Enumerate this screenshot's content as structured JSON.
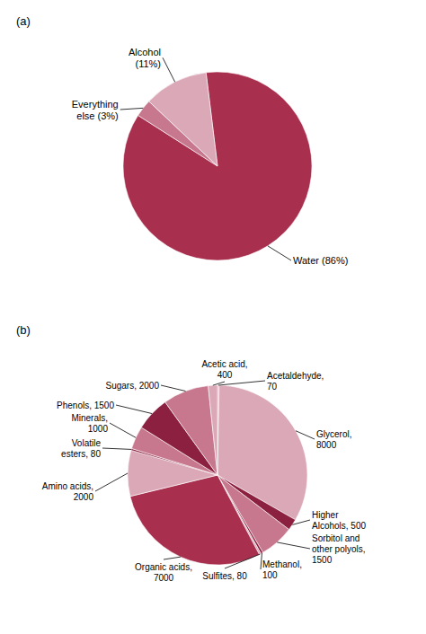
{
  "chart_data": [
    {
      "type": "pie",
      "title": "(a)",
      "categories": [
        "Water (86%)",
        "Everything\nelse (3%)",
        "Alcohol\n(11%)"
      ],
      "values": [
        86,
        3,
        11
      ],
      "colors": [
        "#a8304e",
        "#c8788e",
        "#dba8b8"
      ]
    },
    {
      "type": "pie",
      "title": "(b)",
      "categories": [
        "Acetaldehyde,\n70",
        "Glycerol,\n8000",
        "Higher\nAlcohols, 500",
        "Sorbitol and\nother polyols,\n1500",
        "Methanol,\n100",
        "Sulfites, 80",
        "Organic acids,\n7000",
        "Amino acids,\n2000",
        "Volatile\nesters, 80",
        "Minerals,\n1000",
        "Phenols, 1500",
        "Sugars, 2000",
        "Acetic acid,\n400"
      ],
      "values": [
        70,
        8000,
        500,
        1500,
        100,
        80,
        7000,
        2000,
        80,
        1000,
        1500,
        2000,
        400
      ],
      "colors": [
        "#dba8b8",
        "#dba8b8",
        "#8b2040",
        "#c8788e",
        "#8b2040",
        "#dba8b8",
        "#a8304e",
        "#dba8b8",
        "#8b2040",
        "#c8788e",
        "#8b2040",
        "#c8788e",
        "#dba8b8"
      ]
    }
  ]
}
